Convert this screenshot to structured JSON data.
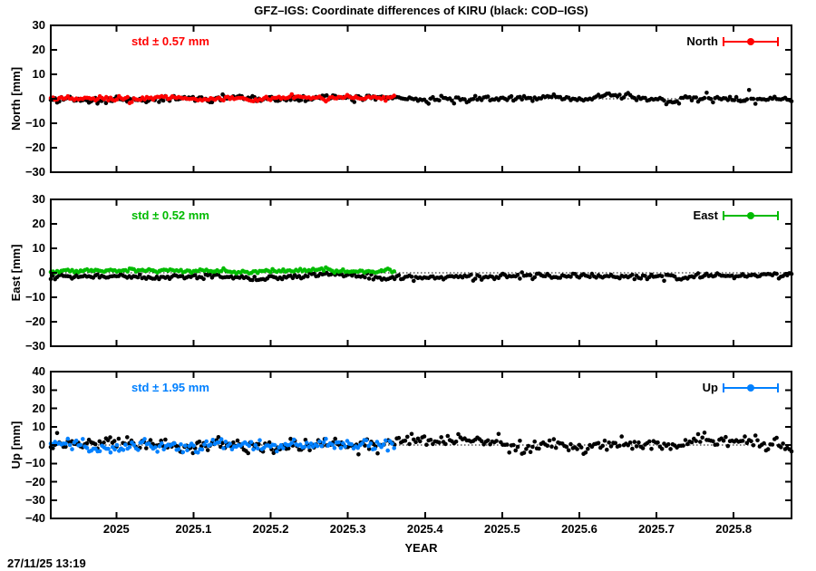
{
  "title": "GFZ–IGS: Coordinate differences of KIRU (black: COD–IGS)",
  "timestamp": "27/11/25 13:19",
  "colors": {
    "background": "#ffffff",
    "frame": "#000000",
    "cod_series": "#000000",
    "gfz_north": "#ff0000",
    "gfz_east": "#00bb00",
    "gfz_up": "#0080ff"
  },
  "x_axis": {
    "label": "YEAR",
    "range": [
      2024.915,
      2025.875
    ],
    "ticks": [
      {
        "label": "2025",
        "value": 2025.0
      },
      {
        "label": "2025.1",
        "value": 2025.1
      },
      {
        "label": "2025.2",
        "value": 2025.2
      },
      {
        "label": "2025.3",
        "value": 2025.3
      },
      {
        "label": "2025.4",
        "value": 2025.4
      },
      {
        "label": "2025.5",
        "value": 2025.5
      },
      {
        "label": "2025.6",
        "value": 2025.6
      },
      {
        "label": "2025.7",
        "value": 2025.7
      },
      {
        "label": "2025.8",
        "value": 2025.8
      }
    ]
  },
  "chart_data": [
    {
      "type": "scatter",
      "name": "North",
      "ylabel": "North [mm]",
      "ylim": [
        -30,
        30
      ],
      "yticks": [
        "30",
        "20",
        "10",
        "0",
        "−10",
        "−20",
        "−30"
      ],
      "std_label": "std ± 0.57 mm",
      "legend_label": "North",
      "accent_color": "#ff0000",
      "zero_line": "dotted",
      "series": [
        {
          "name": "COD-IGS",
          "color": "#000000",
          "x_start": 2024.915,
          "x_end": 2025.875,
          "mean_mm": -0.1,
          "std_mm": 0.85,
          "points_per_year": 365
        },
        {
          "name": "GFZ-IGS",
          "color": "#ff0000",
          "x_start": 2024.915,
          "x_end": 2025.36,
          "mean_mm": 0.1,
          "std_mm": 0.57,
          "points_per_year": 365
        }
      ]
    },
    {
      "type": "scatter",
      "name": "East",
      "ylabel": "East [mm]",
      "ylim": [
        -30,
        30
      ],
      "yticks": [
        "30",
        "20",
        "10",
        "0",
        "−10",
        "−20",
        "−30"
      ],
      "std_label": "std ± 0.52 mm",
      "legend_label": "East",
      "accent_color": "#00bb00",
      "zero_line": "dotted",
      "series": [
        {
          "name": "COD-IGS",
          "color": "#000000",
          "x_start": 2024.915,
          "x_end": 2025.875,
          "mean_mm": -1.6,
          "std_mm": 0.7,
          "points_per_year": 365
        },
        {
          "name": "GFZ-IGS",
          "color": "#00bb00",
          "x_start": 2024.915,
          "x_end": 2025.36,
          "mean_mm": 0.6,
          "std_mm": 0.52,
          "points_per_year": 365
        }
      ]
    },
    {
      "type": "scatter",
      "name": "Up",
      "ylabel": "Up [mm]",
      "ylim": [
        -40,
        40
      ],
      "yticks": [
        "40",
        "30",
        "20",
        "10",
        "0",
        "−10",
        "−20",
        "−30",
        "−40"
      ],
      "std_label": "std ± 1.95 mm",
      "legend_label": "Up",
      "accent_color": "#0080ff",
      "zero_line": "dotted",
      "series": [
        {
          "name": "COD-IGS",
          "color": "#000000",
          "x_start": 2024.915,
          "x_end": 2025.875,
          "mean_mm": 0.6,
          "std_mm": 2.2,
          "points_per_year": 365
        },
        {
          "name": "GFZ-IGS",
          "color": "#0080ff",
          "x_start": 2024.915,
          "x_end": 2025.36,
          "mean_mm": -0.4,
          "std_mm": 1.95,
          "points_per_year": 365
        }
      ]
    }
  ]
}
